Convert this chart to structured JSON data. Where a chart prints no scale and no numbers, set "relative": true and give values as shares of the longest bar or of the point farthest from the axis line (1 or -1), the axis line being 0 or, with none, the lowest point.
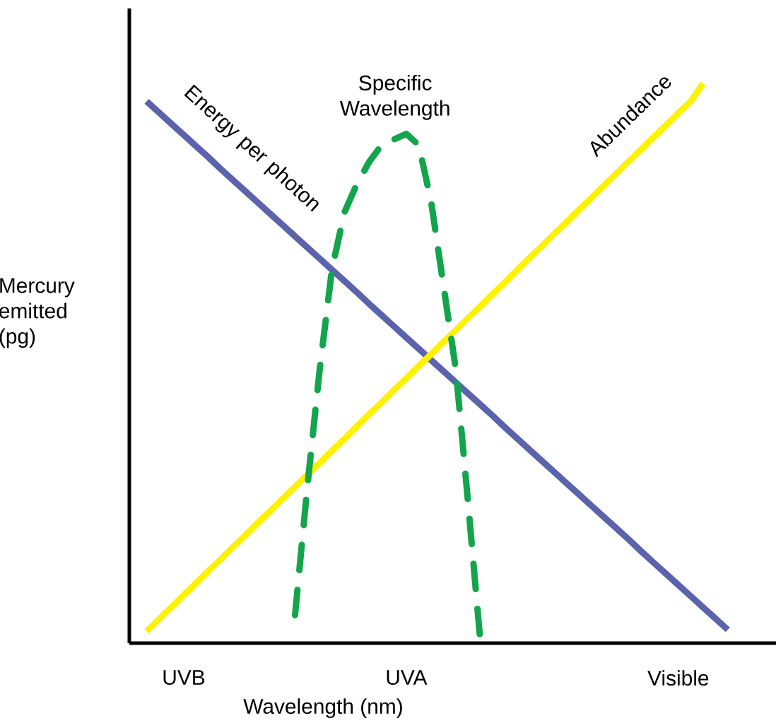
{
  "chart_data": {
    "type": "line",
    "relative": true,
    "xlabel": "Wavelength (nm)",
    "ylabel": "Mercury emitted (pg)",
    "categories": [
      null,
      null,
      null,
      null,
      "UVB",
      null,
      null,
      null,
      null,
      null,
      null,
      null,
      null,
      null,
      null,
      null,
      null,
      null,
      null,
      null,
      null,
      null,
      "UVA",
      null,
      null,
      null,
      null,
      null,
      null,
      null,
      null,
      null,
      null,
      null,
      null,
      null,
      null,
      null,
      null,
      null,
      null,
      null,
      null,
      null,
      "Visible",
      null,
      null,
      null,
      null,
      null,
      null,
      null
    ],
    "grid": false,
    "legend": false,
    "marker": "none",
    "series": [
      {
        "name": "Energy per photon",
        "color": "#5b63ad",
        "line_style": "solid",
        "values": [
          null,
          0.968,
          0.948,
          0.928,
          0.908,
          0.888,
          0.868,
          0.847,
          0.827,
          0.807,
          0.787,
          0.767,
          0.747,
          0.727,
          0.707,
          0.687,
          0.667,
          0.647,
          0.627,
          0.606,
          0.586,
          0.566,
          0.546,
          0.526,
          0.506,
          0.486,
          0.466,
          0.446,
          0.426,
          0.406,
          0.385,
          0.365,
          0.345,
          0.325,
          0.305,
          0.285,
          0.265,
          0.245,
          0.225,
          0.205,
          0.185,
          0.164,
          0.144,
          0.124,
          0.104,
          0.084,
          0.064,
          0.044,
          0.024,
          null,
          null,
          null
        ]
      },
      {
        "name": "Abundance",
        "color": "#fff200",
        "line_style": "solid",
        "values": [
          null,
          0.021,
          0.043,
          0.064,
          0.086,
          0.107,
          0.129,
          0.15,
          0.172,
          0.193,
          0.215,
          0.236,
          0.258,
          0.279,
          0.301,
          0.322,
          0.344,
          0.365,
          0.387,
          0.409,
          0.43,
          0.452,
          0.473,
          0.495,
          0.516,
          0.538,
          0.559,
          0.581,
          0.602,
          0.624,
          0.645,
          0.667,
          0.689,
          0.71,
          0.732,
          0.753,
          0.775,
          0.796,
          0.818,
          0.839,
          0.861,
          0.882,
          0.904,
          0.925,
          0.947,
          0.968,
          1.0,
          null,
          null,
          null,
          null,
          null
        ]
      },
      {
        "name": "Specific Wavelength",
        "color": "#13a54b",
        "line_style": "dashed",
        "values": [
          null,
          null,
          null,
          null,
          null,
          null,
          null,
          null,
          null,
          null,
          null,
          null,
          null,
          0.05,
          0.28,
          0.49,
          0.67,
          0.77,
          0.82,
          0.86,
          0.89,
          0.9,
          0.91,
          0.89,
          0.79,
          0.64,
          0.49,
          0.25,
          0,
          null,
          null,
          null,
          null,
          null,
          null,
          null,
          null,
          null,
          null,
          null,
          null,
          null,
          null,
          null,
          null,
          null,
          null,
          null,
          null,
          null,
          null,
          null
        ]
      }
    ]
  }
}
